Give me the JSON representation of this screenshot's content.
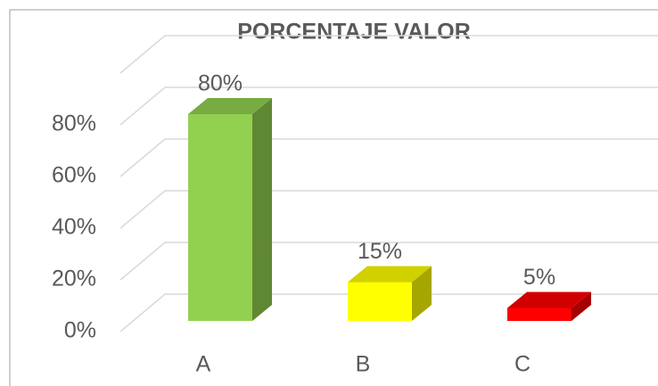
{
  "chart_data": {
    "type": "bar3d",
    "title": "PORCENTAJE VALOR",
    "categories": [
      "A",
      "B",
      "C"
    ],
    "values": [
      80,
      15,
      5
    ],
    "value_labels": [
      "80%",
      "15%",
      "5%"
    ],
    "colors": [
      "#92d050",
      "#ffff00",
      "#ff0000"
    ],
    "ylim": [
      0,
      100
    ],
    "yticks": [
      {
        "value": 0,
        "label": "0%"
      },
      {
        "value": 20,
        "label": "20%"
      },
      {
        "value": 40,
        "label": "40%"
      },
      {
        "value": 60,
        "label": "60%"
      },
      {
        "value": 80,
        "label": "80%"
      }
    ],
    "grid": true
  }
}
